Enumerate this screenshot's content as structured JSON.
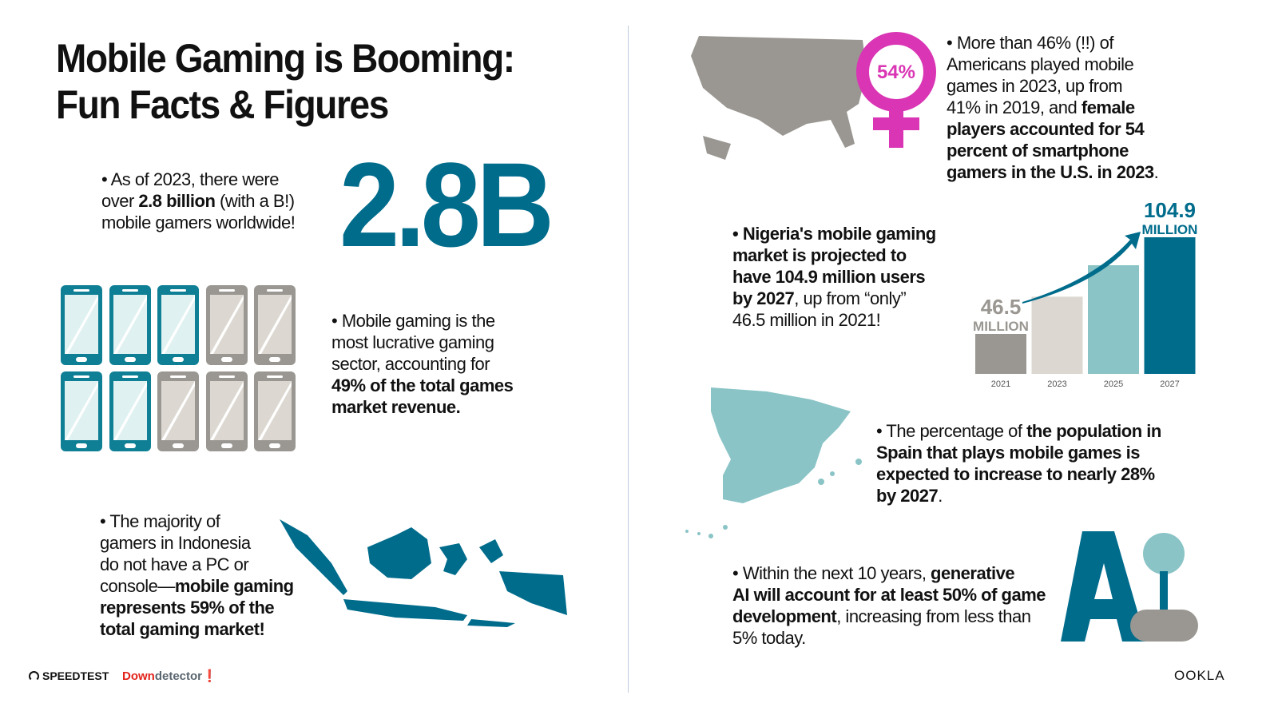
{
  "title": [
    "Mobile Gaming is Booming:",
    "Fun Facts & Figures"
  ],
  "big_number": "2.8B",
  "facts": {
    "gamers": [
      {
        "t": "• As of 2023, there were"
      },
      {
        "br": 1
      },
      {
        "t": "over "
      },
      {
        "b": "2.8 billion"
      },
      {
        "t": " (with a B!)"
      },
      {
        "br": 1
      },
      {
        "t": "mobile gamers worldwide!"
      }
    ],
    "revenue": [
      {
        "t": "• Mobile gaming is the"
      },
      {
        "br": 1
      },
      {
        "t": "most lucrative gaming"
      },
      {
        "br": 1
      },
      {
        "t": "sector, accounting for"
      },
      {
        "br": 1
      },
      {
        "b": "49% of the total games"
      },
      {
        "br": 1
      },
      {
        "b": "market revenue."
      }
    ],
    "indonesia": [
      {
        "t": "• The majority of"
      },
      {
        "br": 1
      },
      {
        "t": "gamers in Indonesia"
      },
      {
        "br": 1
      },
      {
        "t": "do not have a PC or"
      },
      {
        "br": 1
      },
      {
        "t": "console—"
      },
      {
        "b": "mobile gaming"
      },
      {
        "br": 1
      },
      {
        "b": "represents 59% of the"
      },
      {
        "br": 1
      },
      {
        "b": "total gaming market!"
      }
    ],
    "usa": [
      {
        "t": "• More than 46% (!!) of"
      },
      {
        "br": 1
      },
      {
        "t": "Americans played mobile"
      },
      {
        "br": 1
      },
      {
        "t": "games in 2023, up from"
      },
      {
        "br": 1
      },
      {
        "t": "41% in 2019, and "
      },
      {
        "b": "female"
      },
      {
        "br": 1
      },
      {
        "b": "players accounted for 54"
      },
      {
        "br": 1
      },
      {
        "b": "percent of smartphone"
      },
      {
        "br": 1
      },
      {
        "b": "gamers in the U.S. in 2023"
      },
      {
        "t": "."
      }
    ],
    "nigeria": [
      {
        "b": "• Nigeria's mobile gaming"
      },
      {
        "br": 1
      },
      {
        "b": "market is projected to"
      },
      {
        "br": 1
      },
      {
        "b": "have 104.9 million users"
      },
      {
        "br": 1
      },
      {
        "b": "by 2027"
      },
      {
        "t": ", up from “only”"
      },
      {
        "br": 1
      },
      {
        "t": "46.5 million in 2021!"
      }
    ],
    "spain": [
      {
        "t": "• The percentage of "
      },
      {
        "b": "the population in"
      },
      {
        "br": 1
      },
      {
        "b": "Spain that plays mobile games is"
      },
      {
        "br": 1
      },
      {
        "b": "expected to increase to nearly 28%"
      },
      {
        "br": 1
      },
      {
        "b": "by 2027"
      },
      {
        "t": "."
      }
    ],
    "ai": [
      {
        "t": "• Within the next 10 years, "
      },
      {
        "b": "generative"
      },
      {
        "br": 1
      },
      {
        "b": "AI will account for at least 50% of game"
      },
      {
        "br": 1
      },
      {
        "b": "development"
      },
      {
        "t": ", increasing from less than"
      },
      {
        "br": 1
      },
      {
        "t": "5% today."
      }
    ]
  },
  "phones": {
    "highlighted": 5,
    "total": 10,
    "colors": {
      "on": "#0f7f95",
      "off": "#9a9792"
    }
  },
  "female_badge": "54%",
  "ai_icon_text": "A",
  "chart_data": {
    "type": "bar",
    "categories": [
      "2021",
      "2023",
      "2025",
      "2027"
    ],
    "values": [
      46.5,
      69,
      88,
      104.9
    ],
    "value_labels": [
      {
        "index": 0,
        "value": "46.5",
        "unit": "MILLION"
      },
      {
        "index": 3,
        "value": "104.9",
        "unit": "MILLION"
      }
    ],
    "colors": [
      "#9a9792",
      "#dcd8d1",
      "#8ac4c6",
      "#006c8c"
    ],
    "grid": false,
    "title": "",
    "xlabel": "",
    "ylabel": ""
  },
  "logos": {
    "speedtest": "SPEEDTEST",
    "downdetector_a": "Down",
    "downdetector_b": "detector",
    "ookla": "OOKLA"
  },
  "colors": {
    "brand": "#006c8c",
    "magenta": "#d935b4",
    "gray": "#9a9792",
    "teal_light": "#8ac4c6"
  }
}
